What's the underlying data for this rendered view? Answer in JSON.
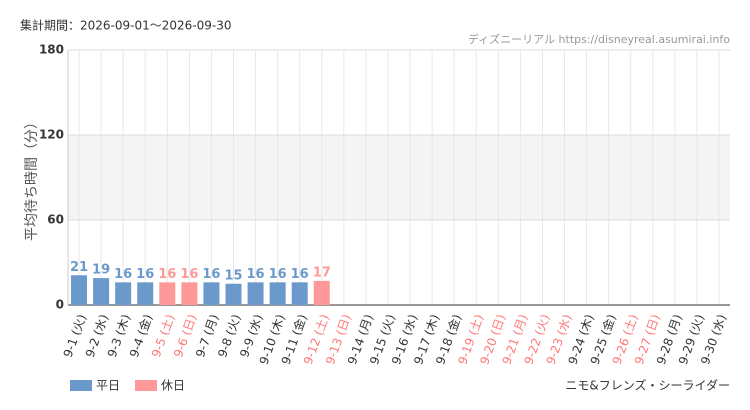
{
  "chart_data": {
    "type": "bar",
    "period": "集計期間：2026-09-01～2026-09-30",
    "source": "ディズニーリアル https://disneyreal.asumirai.info",
    "y_label": "平均待ち時間（分）",
    "attraction": "ニモ&フレンズ・シーライダー",
    "categories": [
      "9-1 (火)",
      "9-2 (水)",
      "9-3 (木)",
      "9-4 (金)",
      "9-5 (土)",
      "9-6 (日)",
      "9-7 (月)",
      "9-8 (火)",
      "9-9 (水)",
      "9-10 (木)",
      "9-11 (金)",
      "9-12 (土)",
      "9-13 (日)",
      "9-14 (月)",
      "9-15 (火)",
      "9-16 (水)",
      "9-17 (木)",
      "9-18 (金)",
      "9-19 (土)",
      "9-20 (日)",
      "9-21 (月)",
      "9-22 (火)",
      "9-23 (水)",
      "9-24 (木)",
      "9-25 (金)",
      "9-26 (土)",
      "9-27 (日)",
      "9-28 (月)",
      "9-29 (火)",
      "9-30 (水)"
    ],
    "category_colors": [
      "#333333",
      "#333333",
      "#333333",
      "#333333",
      "#ff7777",
      "#ff7777",
      "#333333",
      "#333333",
      "#333333",
      "#333333",
      "#333333",
      "#ff7777",
      "#ff7777",
      "#333333",
      "#333333",
      "#333333",
      "#333333",
      "#333333",
      "#ff7777",
      "#ff7777",
      "#ff7777",
      "#ff7777",
      "#ff7777",
      "#333333",
      "#333333",
      "#ff7777",
      "#ff7777",
      "#333333",
      "#333333",
      "#333333"
    ],
    "series": [
      {
        "name": "平日",
        "color": "#6b99cc",
        "values": [
          21,
          19,
          16,
          16,
          null,
          null,
          16,
          15,
          16,
          16,
          16,
          null,
          null,
          null,
          null,
          null,
          null,
          null,
          null,
          null,
          null,
          null,
          null,
          null,
          null,
          null,
          null,
          null,
          null,
          null
        ]
      },
      {
        "name": "休日",
        "color": "#ff9999",
        "values": [
          null,
          null,
          null,
          null,
          16,
          16,
          null,
          null,
          null,
          null,
          null,
          17,
          null,
          null,
          null,
          null,
          null,
          null,
          null,
          null,
          null,
          null,
          null,
          null,
          null,
          null,
          null,
          null,
          null,
          null
        ]
      }
    ],
    "ylim": [
      0,
      180
    ],
    "yticks": [
      0,
      60,
      120,
      180
    ],
    "grid": true
  }
}
